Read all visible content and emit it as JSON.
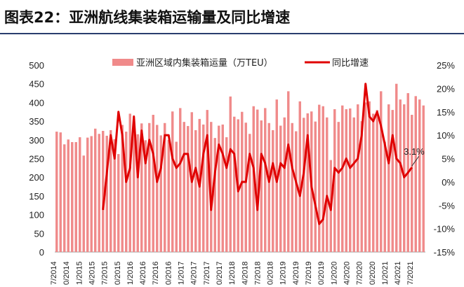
{
  "figure": {
    "label": "图表22：",
    "heading": "亚洲航线集装箱运输量及同比增速"
  },
  "chart_data": {
    "type": "bar",
    "title": "",
    "xlabel": "",
    "ylabel": "",
    "ylim": [
      0,
      500
    ],
    "y2lim": [
      -15,
      25
    ],
    "yticks": [
      0,
      50,
      100,
      150,
      200,
      250,
      300,
      350,
      400,
      450,
      500
    ],
    "y2ticks": [
      "-15%",
      "-10%",
      "-5%",
      "0%",
      "5%",
      "10%",
      "15%",
      "20%",
      "25%"
    ],
    "xtick_labels": [
      "7/2014",
      "0/2014",
      "1/2015",
      "4/2015",
      "7/2015",
      "0/2015",
      "1/2016",
      "4/2016",
      "7/2016",
      "0/2016",
      "1/2017",
      "4/2017",
      "7/2017",
      "0/2017",
      "1/2018",
      "4/2018",
      "7/2018",
      "0/2018",
      "1/2019",
      "4/2019",
      "7/2019",
      "0/2019",
      "1/2020",
      "4/2020",
      "7/2020",
      "0/2020",
      "1/2021",
      "4/2021",
      "7/2021"
    ],
    "legend_position": "top",
    "colors": {
      "bar": "#f08a8a",
      "line": "#e00000"
    },
    "series": [
      {
        "name": "亚洲区域内集装箱运量（万TEU）",
        "type": "bar",
        "values": [
          322,
          320,
          288,
          301,
          294,
          294,
          307,
          258,
          306,
          310,
          330,
          316,
          324,
          311,
          326,
          302,
          262,
          340,
          322,
          370,
          342,
          315,
          344,
          299,
          345,
          367,
          340,
          312,
          345,
          300,
          376,
          295,
          385,
          348,
          337,
          374,
          326,
          356,
          341,
          380,
          348,
          305,
          338,
          341,
          307,
          416,
          362,
          355,
          375,
          346,
          316,
          390,
          381,
          352,
          385,
          345,
          326,
          408,
          338,
          360,
          430,
          345,
          323,
          403,
          359,
          371,
          376,
          349,
          394,
          390,
          360,
          246,
          382,
          348,
          392,
          382,
          384,
          360,
          395,
          350,
          400,
          403,
          370,
          380,
          430,
          295,
          395,
          380,
          450,
          408,
          395,
          425,
          367,
          417,
          408,
          392
        ]
      },
      {
        "name": "同比增速",
        "type": "line",
        "start_index": 12,
        "values": [
          -6,
          2,
          10,
          5,
          15,
          10,
          0,
          3,
          14,
          1,
          11,
          4,
          9,
          6,
          0,
          3,
          10,
          10,
          5,
          3,
          4,
          6,
          6,
          0,
          3,
          -1,
          6,
          10,
          -6,
          2,
          8,
          6,
          3,
          7,
          6,
          -2,
          0,
          0,
          6,
          3,
          -6,
          6,
          4,
          0,
          4,
          0,
          4,
          3,
          8,
          3,
          0,
          -3,
          2,
          10,
          -1,
          -5,
          -9,
          -8,
          -3,
          -6,
          3,
          2,
          3,
          5,
          3,
          4,
          5,
          10,
          21,
          14,
          13,
          15,
          12,
          8,
          4,
          10,
          5,
          4,
          1,
          2,
          3.1
        ]
      }
    ],
    "annotations": [
      {
        "text": "3.1%"
      }
    ]
  }
}
